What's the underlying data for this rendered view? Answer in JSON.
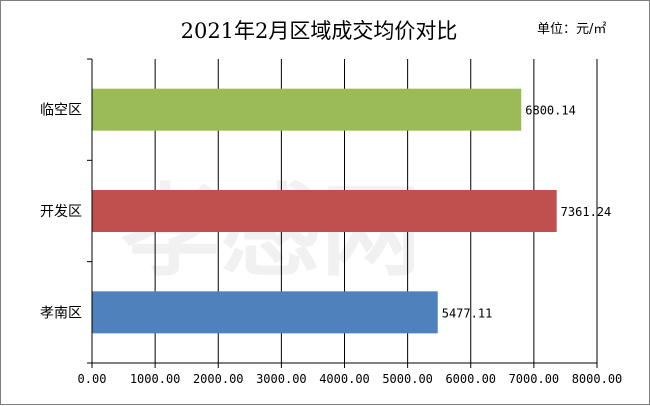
{
  "chart_data": {
    "type": "bar",
    "orientation": "horizontal",
    "title": "2021年2月区域成交均价对比",
    "unit_label": "单位：元/㎡",
    "categories": [
      "临空区",
      "开发区",
      "孝南区"
    ],
    "values": [
      6800.14,
      7361.24,
      5477.11
    ],
    "value_labels": [
      "6800.14",
      "7361.24",
      "5477.11"
    ],
    "bar_colors": [
      "#9bbb59",
      "#c0504d",
      "#4f81bd"
    ],
    "xlim": [
      0,
      8000
    ],
    "xticks": [
      0,
      1000,
      2000,
      3000,
      4000,
      5000,
      6000,
      7000,
      8000
    ],
    "xtick_labels": [
      "0.00",
      "1000.00",
      "2000.00",
      "3000.00",
      "4000.00",
      "5000.00",
      "6000.00",
      "7000.00",
      "8000.00"
    ],
    "grid": true,
    "xlabel": "",
    "ylabel": "",
    "legend": "none"
  },
  "watermark": "孝感网"
}
